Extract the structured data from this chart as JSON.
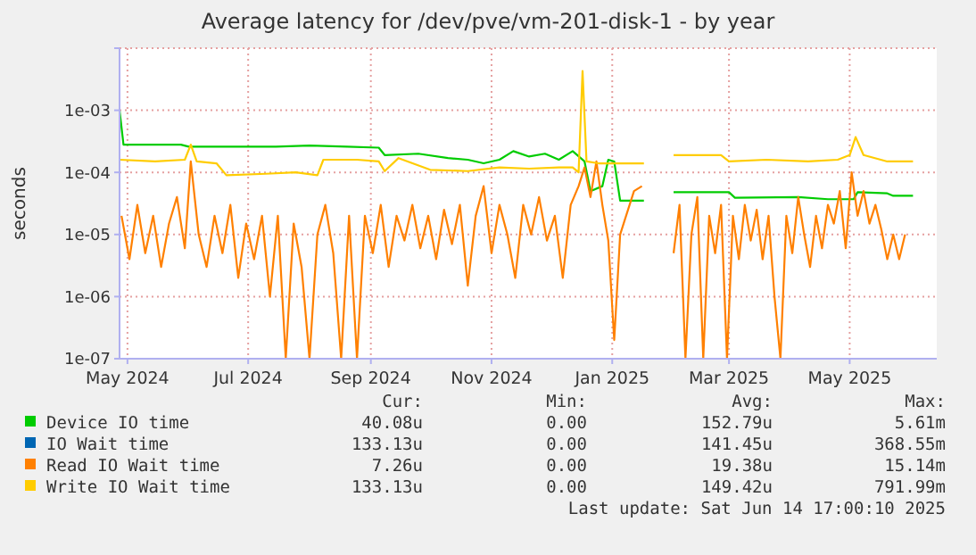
{
  "chart_data": {
    "type": "line",
    "title": "Average latency for /dev/pve/vm-201-disk-1 - by year",
    "ylabel": "seconds",
    "log": "y",
    "grid": true,
    "legend": "bottom",
    "xlim": [
      "2024-04-27",
      "2025-06-14"
    ],
    "xticks": [
      {
        "value": "2024-05-01",
        "label": "May 2024"
      },
      {
        "value": "2024-07-01",
        "label": "Jul 2024"
      },
      {
        "value": "2024-09-01",
        "label": "Sep 2024"
      },
      {
        "value": "2024-11-01",
        "label": "Nov 2024"
      },
      {
        "value": "2025-01-01",
        "label": "Jan 2025"
      },
      {
        "value": "2025-03-01",
        "label": "Mar 2025"
      },
      {
        "value": "2025-05-01",
        "label": "May 2025"
      }
    ],
    "ylim": [
      1e-07,
      0.01
    ],
    "yticks": [
      {
        "value": 1e-07,
        "label": "1e-07"
      },
      {
        "value": 1e-06,
        "label": "1e-06"
      },
      {
        "value": 1e-05,
        "label": "1e-05"
      },
      {
        "value": 0.0001,
        "label": "1e-04"
      },
      {
        "value": 0.001,
        "label": "1e-03"
      },
      {
        "value": 0.01,
        "label": null
      }
    ],
    "series": [
      {
        "name": "Device IO time",
        "color": "#00cc00",
        "x": [
          "2024-04-27",
          "2024-04-29",
          "2024-05-28",
          "2024-06-01",
          "2024-07-15",
          "2024-08-01",
          "2024-08-20",
          "2024-09-05",
          "2024-09-08",
          "2024-09-25",
          "2024-10-10",
          "2024-10-20",
          "2024-10-28",
          "2024-11-05",
          "2024-11-12",
          "2024-11-20",
          "2024-11-28",
          "2024-12-05",
          "2024-12-12",
          "2024-12-18",
          "2024-12-21",
          "2024-12-27",
          "2024-12-30",
          "2025-01-02",
          "2025-01-05",
          "2025-01-17",
          "2025-01-25",
          "2025-02-01",
          "2025-02-10",
          "2025-03-01",
          "2025-03-04",
          "2025-04-05",
          "2025-04-20",
          "2025-05-03",
          "2025-05-05",
          "2025-05-20",
          "2025-05-23",
          "2025-06-02"
        ],
        "values": [
          0.001,
          0.00028,
          0.00028,
          0.00026,
          0.00026,
          0.00027,
          0.00026,
          0.00025,
          0.00019,
          0.0002,
          0.00017,
          0.00016,
          0.00014,
          0.00016,
          0.00022,
          0.00018,
          0.0002,
          0.00016,
          0.00022,
          0.00015,
          5e-05,
          6e-05,
          0.00016,
          0.00015,
          3.5e-05,
          3.5e-05,
          null,
          4.8e-05,
          4.8e-05,
          4.8e-05,
          3.9e-05,
          4e-05,
          3.7e-05,
          3.7e-05,
          4.8e-05,
          4.6e-05,
          4.2e-05,
          4.2e-05
        ]
      },
      {
        "name": "IO Wait time",
        "color": "#0066b3"
      },
      {
        "name": "Read IO Wait time",
        "color": "#ff8000",
        "x": [
          "2024-04-28",
          "2024-05-02",
          "2024-05-06",
          "2024-05-10",
          "2024-05-14",
          "2024-05-18",
          "2024-05-22",
          "2024-05-26",
          "2024-05-30",
          "2024-06-02",
          "2024-06-06",
          "2024-06-10",
          "2024-06-14",
          "2024-06-18",
          "2024-06-22",
          "2024-06-26",
          "2024-06-30",
          "2024-07-04",
          "2024-07-08",
          "2024-07-12",
          "2024-07-16",
          "2024-07-20",
          "2024-07-24",
          "2024-07-28",
          "2024-08-01",
          "2024-08-05",
          "2024-08-09",
          "2024-08-13",
          "2024-08-17",
          "2024-08-21",
          "2024-08-25",
          "2024-08-29",
          "2024-09-02",
          "2024-09-06",
          "2024-09-10",
          "2024-09-14",
          "2024-09-18",
          "2024-09-22",
          "2024-09-26",
          "2024-09-30",
          "2024-10-04",
          "2024-10-08",
          "2024-10-12",
          "2024-10-16",
          "2024-10-20",
          "2024-10-24",
          "2024-10-28",
          "2024-11-01",
          "2024-11-05",
          "2024-11-09",
          "2024-11-13",
          "2024-11-17",
          "2024-11-21",
          "2024-11-25",
          "2024-11-29",
          "2024-12-03",
          "2024-12-07",
          "2024-12-11",
          "2024-12-15",
          "2024-12-18",
          "2024-12-21",
          "2024-12-24",
          "2024-12-27",
          "2024-12-30",
          "2025-01-02",
          "2025-01-05",
          "2025-01-08",
          "2025-01-12",
          "2025-01-16",
          "2025-01-25",
          "2025-02-01",
          "2025-02-04",
          "2025-02-07",
          "2025-02-10",
          "2025-02-13",
          "2025-02-16",
          "2025-02-19",
          "2025-02-22",
          "2025-02-25",
          "2025-02-28",
          "2025-03-03",
          "2025-03-06",
          "2025-03-09",
          "2025-03-12",
          "2025-03-15",
          "2025-03-18",
          "2025-03-21",
          "2025-03-24",
          "2025-03-27",
          "2025-03-30",
          "2025-04-02",
          "2025-04-05",
          "2025-04-08",
          "2025-04-11",
          "2025-04-14",
          "2025-04-17",
          "2025-04-20",
          "2025-04-23",
          "2025-04-26",
          "2025-04-29",
          "2025-05-02",
          "2025-05-05",
          "2025-05-08",
          "2025-05-11",
          "2025-05-14",
          "2025-05-17",
          "2025-05-20",
          "2025-05-23",
          "2025-05-26",
          "2025-05-29"
        ],
        "values": [
          2e-05,
          4e-06,
          3e-05,
          5e-06,
          2e-05,
          3e-06,
          1.5e-05,
          4e-05,
          6e-06,
          0.00015,
          1e-05,
          3e-06,
          2e-05,
          5e-06,
          3e-05,
          2e-06,
          1.5e-05,
          4e-06,
          2e-05,
          1e-06,
          2e-05,
          1e-07,
          1.5e-05,
          3e-06,
          1e-07,
          1e-05,
          3e-05,
          5e-06,
          1e-07,
          2e-05,
          1e-07,
          2e-05,
          5e-06,
          3e-05,
          3e-06,
          2e-05,
          8e-06,
          3e-05,
          6e-06,
          2e-05,
          4e-06,
          2.5e-05,
          7e-06,
          3e-05,
          1.5e-06,
          2e-05,
          6e-05,
          5e-06,
          3e-05,
          1e-05,
          2e-06,
          3e-05,
          1e-05,
          4e-05,
          8e-06,
          2e-05,
          2e-06,
          3e-05,
          6e-05,
          0.00012,
          4e-05,
          0.00015,
          3e-05,
          8e-06,
          2e-07,
          1e-05,
          2e-05,
          5e-05,
          6e-05,
          null,
          5e-06,
          3e-05,
          1e-07,
          1e-05,
          4e-05,
          1e-07,
          2e-05,
          5e-06,
          3e-05,
          1e-07,
          2e-05,
          4e-06,
          3e-05,
          8e-06,
          2.5e-05,
          4e-06,
          2e-05,
          1e-06,
          1e-07,
          2e-05,
          5e-06,
          4e-05,
          1e-05,
          3e-06,
          2e-05,
          6e-06,
          3e-05,
          1.5e-05,
          5e-05,
          6e-06,
          0.0001,
          2e-05,
          5e-05,
          1.5e-05,
          3e-05,
          1.2e-05,
          4e-06,
          1e-05,
          4e-06,
          1e-05
        ]
      },
      {
        "name": "Write IO Wait time",
        "color": "#ffcc00",
        "x": [
          "2024-04-27",
          "2024-05-15",
          "2024-05-30",
          "2024-06-02",
          "2024-06-05",
          "2024-06-15",
          "2024-06-20",
          "2024-07-10",
          "2024-07-25",
          "2024-08-05",
          "2024-08-08",
          "2024-08-25",
          "2024-09-05",
          "2024-09-08",
          "2024-09-15",
          "2024-10-01",
          "2024-10-20",
          "2024-11-05",
          "2024-11-20",
          "2024-12-05",
          "2024-12-12",
          "2024-12-15",
          "2024-12-17",
          "2024-12-19",
          "2024-12-25",
          "2025-01-05",
          "2025-01-17",
          "2025-01-25",
          "2025-02-01",
          "2025-02-25",
          "2025-03-01",
          "2025-03-20",
          "2025-04-10",
          "2025-04-25",
          "2025-05-01",
          "2025-05-04",
          "2025-05-08",
          "2025-05-20",
          "2025-06-02"
        ],
        "values": [
          0.00016,
          0.00015,
          0.00016,
          0.00028,
          0.00015,
          0.00014,
          9e-05,
          9.5e-05,
          0.0001,
          9e-05,
          0.00016,
          0.00016,
          0.00015,
          0.000105,
          0.00017,
          0.00011,
          0.000105,
          0.00012,
          0.000115,
          0.00012,
          0.00012,
          0.0001,
          0.0043,
          0.00015,
          0.00014,
          0.00014,
          0.00014,
          null,
          0.00019,
          0.00019,
          0.00015,
          0.00016,
          0.00015,
          0.00016,
          0.00019,
          0.00037,
          0.00019,
          0.00015,
          0.00015
        ]
      }
    ],
    "annotations": [
      "Cur:",
      "Min:",
      "Avg:",
      "Max:",
      "40.08u",
      "0.00",
      "152.79u",
      "5.61m",
      "133.13u",
      "0.00",
      "141.45u",
      "368.55m",
      "7.26u",
      "0.00",
      "19.38u",
      "15.14m",
      "133.13u",
      "0.00",
      "149.42u",
      "791.99m",
      "Last update: Sat Jun 14 17:00:10 2025"
    ]
  }
}
